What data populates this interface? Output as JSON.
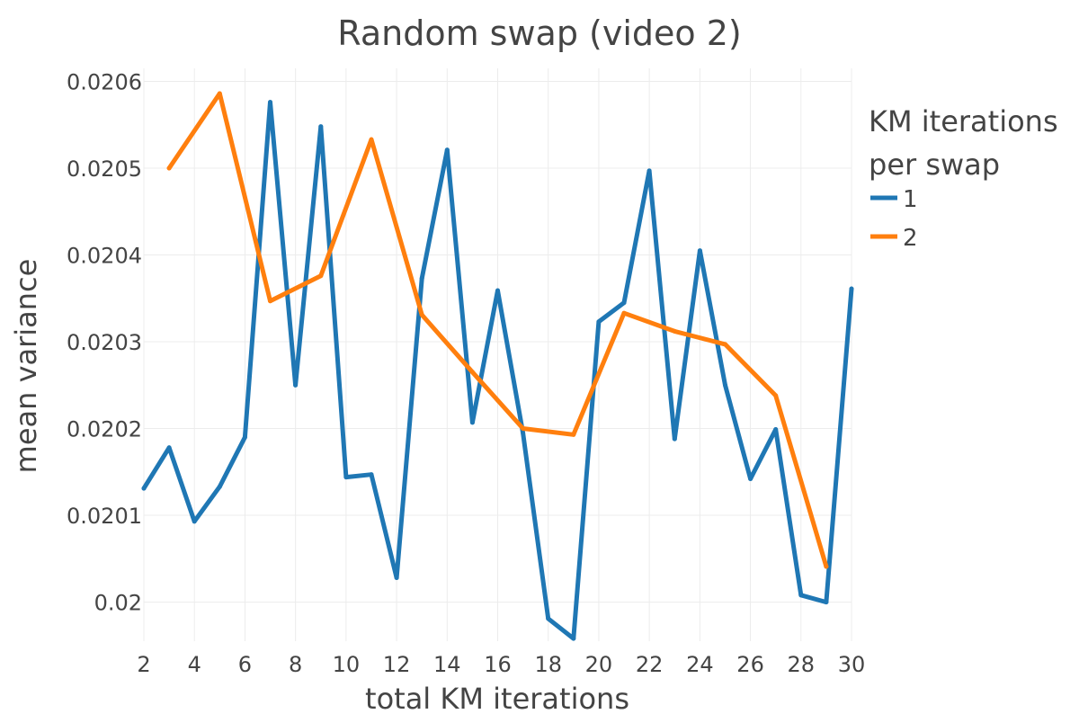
{
  "chart_data": {
    "type": "line",
    "title": "Random swap (video 2)",
    "xlabel": "total KM iterations",
    "ylabel": "mean variance",
    "xlim": [
      2,
      30
    ],
    "ylim": [
      0.019955,
      0.020615
    ],
    "x_ticks": [
      2,
      4,
      6,
      8,
      10,
      12,
      14,
      16,
      18,
      20,
      22,
      24,
      26,
      28,
      30
    ],
    "x_tick_labels": [
      "2",
      "4",
      "6",
      "8",
      "10",
      "12",
      "14",
      "16",
      "18",
      "20",
      "22",
      "24",
      "26",
      "28",
      "30"
    ],
    "y_ticks": [
      0.02,
      0.0201,
      0.0202,
      0.0203,
      0.0204,
      0.0205,
      0.0206
    ],
    "y_tick_labels": [
      "0.02",
      "0.0201",
      "0.0202",
      "0.0203",
      "0.0204",
      "0.0205",
      "0.0206"
    ],
    "grid": true,
    "legend": {
      "title_lines": [
        "KM iterations",
        "per swap"
      ],
      "placement": "top-right"
    },
    "series": [
      {
        "name": "1",
        "color": "#1f77b4",
        "x": [
          2,
          3,
          4,
          5,
          6,
          7,
          8,
          9,
          10,
          11,
          12,
          13,
          14,
          15,
          16,
          17,
          18,
          19,
          20,
          21,
          22,
          23,
          24,
          25,
          26,
          27,
          28,
          29,
          30
        ],
        "y": [
          0.020131,
          0.020178,
          0.020093,
          0.020133,
          0.02019,
          0.020576,
          0.02025,
          0.020548,
          0.020144,
          0.020147,
          0.020028,
          0.020373,
          0.020521,
          0.020207,
          0.020359,
          0.020195,
          0.019981,
          0.019958,
          0.020323,
          0.020345,
          0.020497,
          0.020188,
          0.020405,
          0.02025,
          0.020142,
          0.020199,
          0.020008,
          0.02,
          0.020361
        ]
      },
      {
        "name": "2",
        "color": "#ff7f0e",
        "x": [
          3,
          5,
          7,
          9,
          11,
          13,
          15,
          17,
          19,
          21,
          23,
          25,
          27,
          29
        ],
        "y": [
          0.0205,
          0.020586,
          0.020347,
          0.020376,
          0.020533,
          0.020331,
          0.020265,
          0.0202,
          0.020193,
          0.020333,
          0.020312,
          0.020297,
          0.020238,
          0.020041
        ]
      }
    ]
  }
}
